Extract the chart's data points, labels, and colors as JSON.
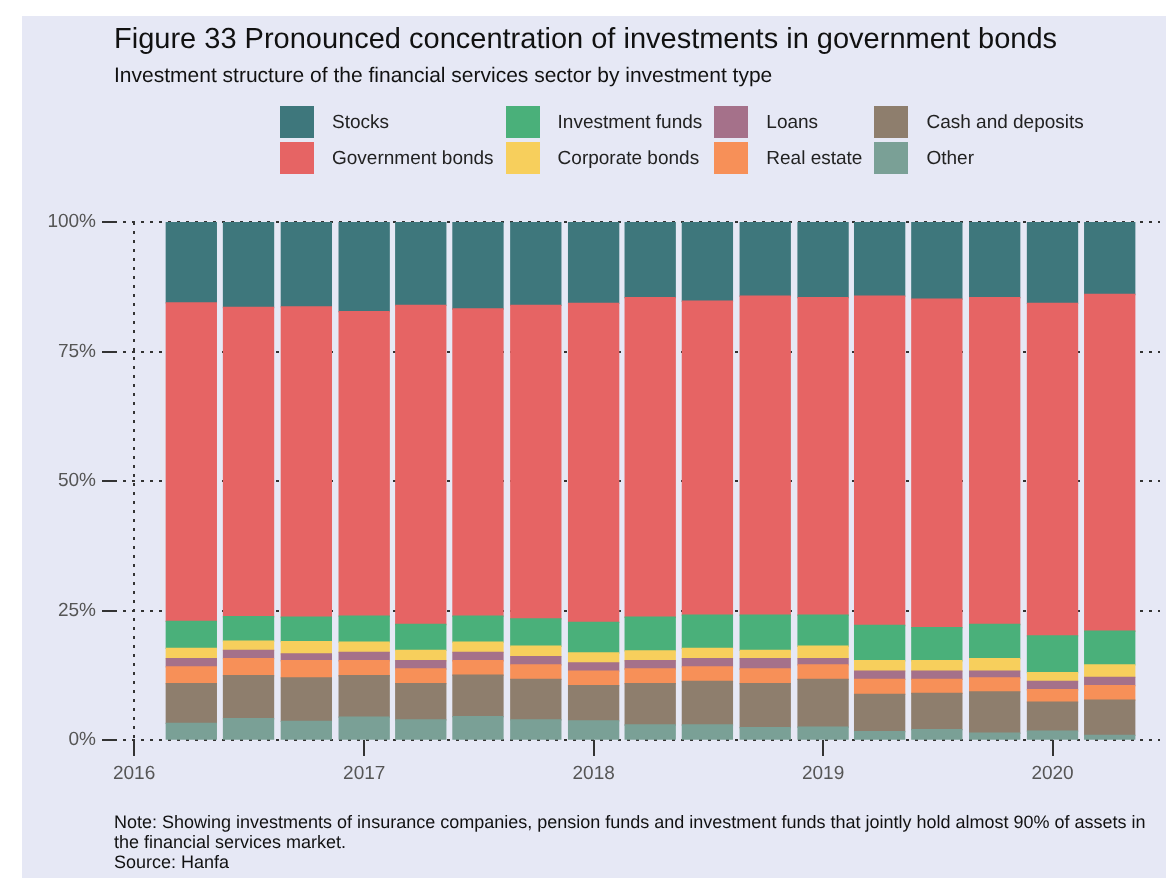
{
  "chart_data": {
    "type": "bar",
    "stacked": true,
    "title": "Figure 33  Pronounced concentration of investments in government bonds",
    "subtitle": "Investment structure of the financial services sector by investment type",
    "x": [
      "2016-04-01",
      "2016-07-01",
      "2016-10-01",
      "2017-01-01",
      "2017-04-01",
      "2017-07-01",
      "2017-10-01",
      "2018-01-01",
      "2018-04-01",
      "2018-07-01",
      "2018-10-01",
      "2019-01-01",
      "2019-04-01",
      "2019-07-01",
      "2019-10-01",
      "2020-01-01",
      "2020-04-01"
    ],
    "xlim": [
      "2015-11-30",
      "2020-06-20"
    ],
    "xticks": [
      "2016",
      "2017",
      "2018",
      "2019",
      "2020"
    ],
    "ylim": [
      0,
      100
    ],
    "yticks": [
      {
        "value": 0,
        "label": "0%"
      },
      {
        "value": 25,
        "label": "25%"
      },
      {
        "value": 50,
        "label": "50%"
      },
      {
        "value": 75,
        "label": "75%"
      },
      {
        "value": 100,
        "label": "100%"
      }
    ],
    "grid": true,
    "legend": "top",
    "series": [
      {
        "name": "Other",
        "color": "#7aa096",
        "values": [
          3.2,
          4.1,
          3.6,
          4.4,
          3.9,
          4.5,
          3.9,
          3.7,
          2.9,
          2.9,
          2.4,
          2.5,
          1.6,
          2.0,
          1.3,
          1.7,
          0.9
        ]
      },
      {
        "name": "Cash and deposits",
        "color": "#8e7e6d",
        "values": [
          7.7,
          8.3,
          8.4,
          8.0,
          7.0,
          8.0,
          7.8,
          6.8,
          8.0,
          8.4,
          8.5,
          9.2,
          7.2,
          7.0,
          8.0,
          5.6,
          6.8
        ]
      },
      {
        "name": "Real estate",
        "color": "#f79058",
        "values": [
          3.2,
          3.3,
          3.3,
          2.9,
          2.8,
          2.8,
          2.8,
          2.8,
          2.8,
          2.8,
          2.8,
          2.8,
          2.9,
          2.7,
          2.7,
          2.4,
          2.8
        ]
      },
      {
        "name": "Loans",
        "color": "#a5718a",
        "values": [
          1.6,
          1.6,
          1.3,
          1.6,
          1.6,
          1.6,
          1.6,
          1.6,
          1.6,
          1.6,
          2.0,
          1.2,
          1.6,
          1.6,
          1.3,
          1.6,
          1.6
        ]
      },
      {
        "name": "Corporate bonds",
        "color": "#f7cf5c",
        "values": [
          2.0,
          1.8,
          2.4,
          2.0,
          2.0,
          2.0,
          2.0,
          1.9,
          1.9,
          2.0,
          1.6,
          2.4,
          2.0,
          2.0,
          2.4,
          1.7,
          2.4
        ]
      },
      {
        "name": "Investment funds",
        "color": "#4ab07a",
        "values": [
          5.2,
          4.7,
          4.7,
          5.0,
          5.0,
          5.0,
          5.3,
          5.9,
          6.5,
          6.4,
          6.8,
          6.0,
          6.8,
          6.4,
          6.6,
          7.1,
          6.5
        ]
      },
      {
        "name": "Government bonds",
        "color": "#e66464",
        "values": [
          61.5,
          59.7,
          59.9,
          58.8,
          61.6,
          59.3,
          60.5,
          61.6,
          61.7,
          60.6,
          61.6,
          61.3,
          63.6,
          63.4,
          63.1,
          64.2,
          65.0
        ]
      },
      {
        "name": "Stocks",
        "color": "#3e777c",
        "values": [
          15.6,
          16.5,
          16.4,
          17.3,
          16.1,
          16.8,
          16.1,
          15.7,
          14.6,
          15.3,
          14.3,
          14.6,
          14.3,
          14.9,
          14.6,
          15.7,
          14.0
        ]
      }
    ],
    "annotations": [
      "Note: Showing investments of insurance companies, pension funds and investment funds that jointly hold almost 90% of assets in the financial services market.",
      "Source: Hanfa"
    ]
  }
}
